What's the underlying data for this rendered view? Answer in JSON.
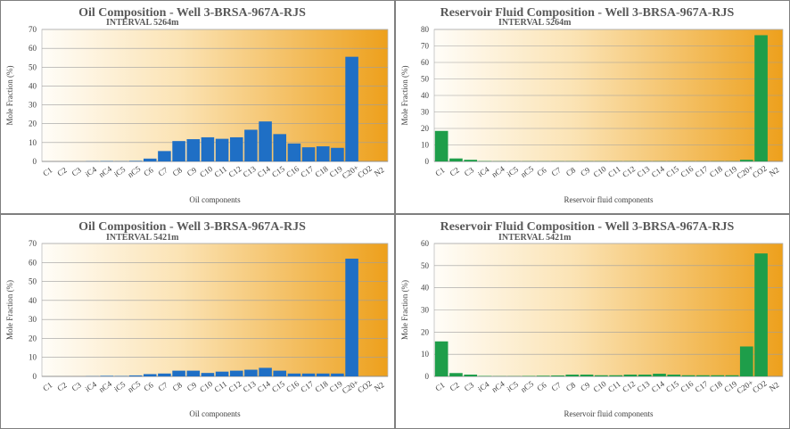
{
  "chart_data": [
    {
      "type": "bar",
      "title": "Oil Composition - Well 3-BRSA-967A-RJS",
      "subtitle": "INTERVAL 5264m",
      "xlabel": "Oil components",
      "ylabel": "Mole Fraction (%)",
      "ylim": [
        0,
        70
      ],
      "yticks": [
        0,
        10,
        20,
        30,
        40,
        50,
        60,
        70
      ],
      "grid": true,
      "legend": "none",
      "bar_color": "#1f6fc5",
      "categories": [
        "C1",
        "C2",
        "C3",
        "iC4",
        "nC4",
        "iC5",
        "nC5",
        "C6",
        "C7",
        "C8",
        "C9",
        "C10",
        "C11",
        "C12",
        "C13",
        "C14",
        "C15",
        "C16",
        "C17",
        "C18",
        "C19",
        "C20+",
        "CO2",
        "N2"
      ],
      "values": [
        0,
        0,
        0,
        0.1,
        0.2,
        0.1,
        0.3,
        1.5,
        5.5,
        10.8,
        11.8,
        12.8,
        12.0,
        12.8,
        16.8,
        21.2,
        14.5,
        9.5,
        7.5,
        8.0,
        7.2,
        55.5,
        0,
        0
      ]
    },
    {
      "type": "bar",
      "title": "Reservoir Fluid Composition - Well 3-BRSA-967A-RJS",
      "subtitle": "INTERVAL 5264m",
      "xlabel": "Reservoir fluid components",
      "ylabel": "Mole Fraction (%)",
      "ylim": [
        0,
        80
      ],
      "yticks": [
        0,
        10,
        20,
        30,
        40,
        50,
        60,
        70,
        80
      ],
      "grid": true,
      "legend": "none",
      "bar_color": "#1e9e4a",
      "categories": [
        "C1",
        "C2",
        "C3",
        "iC4",
        "nC4",
        "iC5",
        "nC5",
        "C6",
        "C7",
        "C8",
        "C9",
        "C10",
        "C11",
        "C12",
        "C13",
        "C14",
        "C15",
        "C16",
        "C17",
        "C18",
        "C19",
        "C20+",
        "CO2",
        "N2"
      ],
      "values": [
        18.5,
        1.8,
        1.0,
        0.2,
        0.1,
        0.1,
        0.1,
        0.1,
        0.1,
        0.1,
        0.1,
        0.1,
        0.1,
        0.1,
        0.1,
        0.1,
        0.1,
        0.1,
        0.1,
        0.1,
        0.1,
        1.0,
        76.5,
        0
      ]
    },
    {
      "type": "bar",
      "title": "Oil Composition - Well 3-BRSA-967A-RJS",
      "subtitle": "INTERVAL 5421m",
      "xlabel": "Oil components",
      "ylabel": "Mole Fraction (%)",
      "ylim": [
        0,
        70
      ],
      "yticks": [
        0,
        10,
        20,
        30,
        40,
        50,
        60,
        70
      ],
      "grid": true,
      "legend": "none",
      "bar_color": "#1f6fc5",
      "categories": [
        "C1",
        "C2",
        "C3",
        "iC4",
        "nC4",
        "iC5",
        "nC5",
        "C6",
        "C7",
        "C8",
        "C9",
        "C10",
        "C11",
        "C12",
        "C13",
        "C14",
        "C15",
        "C16",
        "C17",
        "C18",
        "C19",
        "C20+",
        "CO2",
        "N2"
      ],
      "values": [
        0,
        0,
        0,
        0.1,
        0.3,
        0.2,
        0.5,
        1.2,
        1.5,
        3.0,
        3.0,
        1.8,
        2.5,
        3.0,
        3.5,
        4.5,
        3.0,
        1.5,
        1.5,
        1.5,
        1.5,
        62.0,
        0,
        0
      ]
    },
    {
      "type": "bar",
      "title": "Reservoir Fluid Composition - Well 3-BRSA-967A-RJS",
      "subtitle": "INTERVAL 5421m",
      "xlabel": "Reservoir fluid components",
      "ylabel": "Mole Fraction (%)",
      "ylim": [
        0,
        60
      ],
      "yticks": [
        0,
        10,
        20,
        30,
        40,
        50,
        60
      ],
      "grid": true,
      "legend": "none",
      "bar_color": "#1e9e4a",
      "categories": [
        "C1",
        "C2",
        "C3",
        "iC4",
        "nC4",
        "iC5",
        "nC5",
        "C6",
        "C7",
        "C8",
        "C9",
        "C10",
        "C11",
        "C12",
        "C13",
        "C14",
        "C15",
        "C16",
        "C17",
        "C18",
        "C19",
        "C20+",
        "CO2",
        "N2"
      ],
      "values": [
        15.8,
        1.5,
        0.8,
        0.2,
        0.1,
        0.1,
        0.2,
        0.3,
        0.4,
        0.8,
        0.8,
        0.5,
        0.5,
        0.8,
        0.8,
        1.2,
        0.8,
        0.5,
        0.5,
        0.5,
        0.5,
        13.5,
        55.5,
        0
      ]
    }
  ]
}
